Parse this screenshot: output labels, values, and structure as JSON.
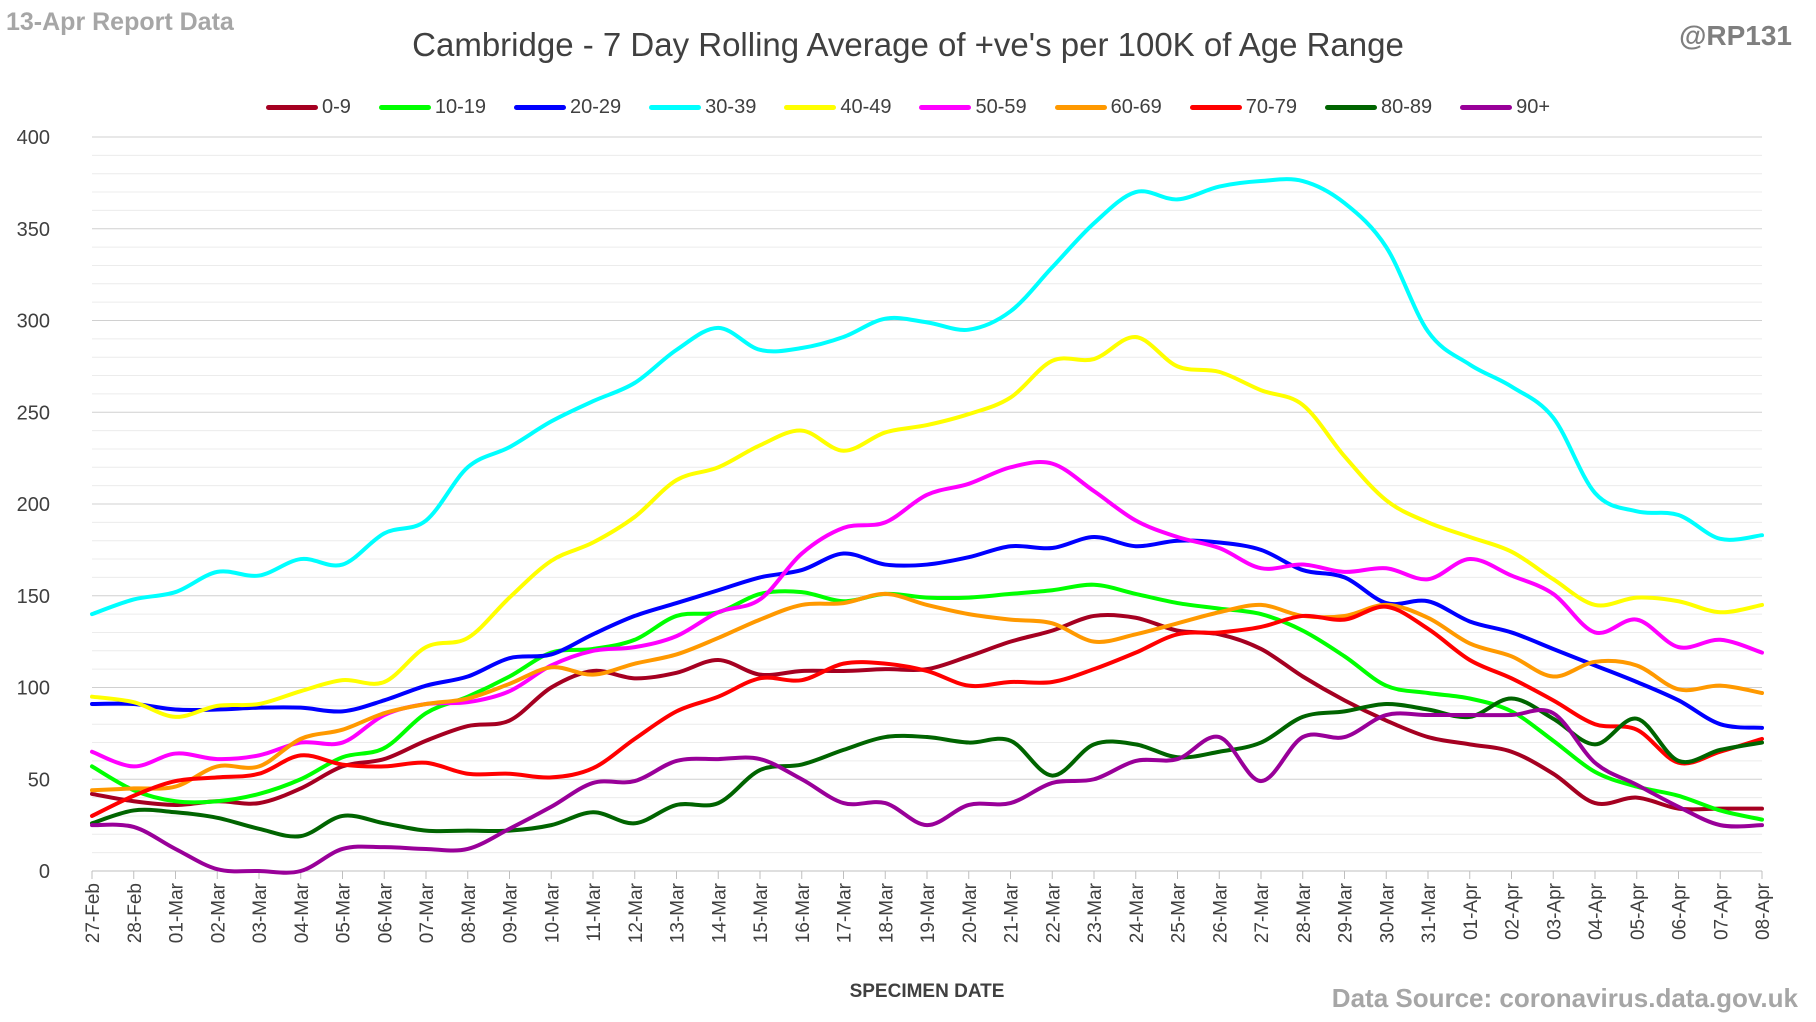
{
  "header": {
    "report_label": "13-Apr Report Data",
    "handle": "@RP131"
  },
  "footer": {
    "source": "Data Source: coronavirus.data.gov.uk"
  },
  "chart_data": {
    "type": "line",
    "title": "Cambridge - 7 Day Rolling Average of +ve's per 100K of Age Range",
    "xlabel": "SPECIMEN DATE",
    "ylabel": "",
    "ylim": [
      0,
      400
    ],
    "yticks": [
      0,
      50,
      100,
      150,
      200,
      250,
      300,
      350,
      400
    ],
    "grid": true,
    "legend_position": "top",
    "categories": [
      "27-Feb",
      "28-Feb",
      "01-Mar",
      "02-Mar",
      "03-Mar",
      "04-Mar",
      "05-Mar",
      "06-Mar",
      "07-Mar",
      "08-Mar",
      "09-Mar",
      "10-Mar",
      "11-Mar",
      "12-Mar",
      "13-Mar",
      "14-Mar",
      "15-Mar",
      "16-Mar",
      "17-Mar",
      "18-Mar",
      "19-Mar",
      "20-Mar",
      "21-Mar",
      "22-Mar",
      "23-Mar",
      "24-Mar",
      "25-Mar",
      "26-Mar",
      "27-Mar",
      "28-Mar",
      "29-Mar",
      "30-Mar",
      "31-Mar",
      "01-Apr",
      "02-Apr",
      "03-Apr",
      "04-Apr",
      "05-Apr",
      "06-Apr",
      "07-Apr",
      "08-Apr"
    ],
    "series": [
      {
        "name": "0-9",
        "color": "#a50021",
        "values": [
          42,
          38,
          36,
          38,
          37,
          45,
          57,
          61,
          71,
          79,
          82,
          100,
          109,
          105,
          108,
          115,
          107,
          109,
          109,
          110,
          110,
          117,
          125,
          131,
          139,
          138,
          131,
          129,
          121,
          106,
          93,
          82,
          73,
          69,
          65,
          53,
          37,
          40,
          34,
          34,
          34
        ]
      },
      {
        "name": "10-19",
        "color": "#00ff00",
        "values": [
          57,
          44,
          38,
          38,
          42,
          50,
          62,
          67,
          86,
          95,
          106,
          119,
          121,
          126,
          139,
          141,
          151,
          152,
          147,
          151,
          149,
          149,
          151,
          153,
          156,
          151,
          146,
          143,
          140,
          131,
          117,
          101,
          97,
          94,
          87,
          71,
          54,
          46,
          41,
          33,
          28
        ]
      },
      {
        "name": "20-29",
        "color": "#0000ff",
        "values": [
          91,
          91,
          88,
          88,
          89,
          89,
          87,
          93,
          101,
          106,
          116,
          118,
          129,
          139,
          146,
          153,
          160,
          164,
          173,
          167,
          167,
          171,
          177,
          176,
          182,
          177,
          180,
          179,
          175,
          164,
          160,
          146,
          147,
          136,
          130,
          121,
          112,
          103,
          93,
          80,
          78
        ]
      },
      {
        "name": "30-39",
        "color": "#00ffff",
        "values": [
          140,
          148,
          152,
          163,
          161,
          170,
          167,
          184,
          191,
          220,
          231,
          245,
          256,
          266,
          284,
          296,
          284,
          285,
          291,
          301,
          299,
          295,
          305,
          329,
          353,
          370,
          366,
          373,
          376,
          376,
          364,
          340,
          294,
          276,
          264,
          247,
          206,
          196,
          194,
          181,
          183
        ]
      },
      {
        "name": "40-49",
        "color": "#ffff00",
        "values": [
          95,
          92,
          84,
          90,
          91,
          98,
          104,
          103,
          122,
          127,
          149,
          169,
          179,
          193,
          213,
          220,
          232,
          240,
          229,
          239,
          243,
          249,
          258,
          278,
          279,
          291,
          275,
          272,
          262,
          254,
          226,
          202,
          190,
          182,
          174,
          159,
          145,
          149,
          147,
          141,
          145
        ]
      },
      {
        "name": "50-59",
        "color": "#ff00ff",
        "values": [
          65,
          57,
          64,
          61,
          63,
          70,
          70,
          85,
          91,
          92,
          98,
          112,
          120,
          122,
          128,
          141,
          148,
          173,
          187,
          190,
          205,
          211,
          220,
          222,
          207,
          191,
          182,
          176,
          165,
          167,
          163,
          165,
          159,
          170,
          161,
          151,
          130,
          137,
          122,
          126,
          119
        ]
      },
      {
        "name": "60-69",
        "color": "#ff9900",
        "values": [
          44,
          45,
          46,
          57,
          57,
          72,
          77,
          86,
          91,
          94,
          102,
          111,
          107,
          113,
          118,
          127,
          137,
          145,
          146,
          151,
          145,
          140,
          137,
          135,
          125,
          129,
          135,
          141,
          145,
          139,
          139,
          145,
          138,
          124,
          117,
          106,
          114,
          112,
          99,
          101,
          97
        ]
      },
      {
        "name": "70-79",
        "color": "#ff0000",
        "values": [
          30,
          41,
          49,
          51,
          53,
          63,
          58,
          57,
          59,
          53,
          53,
          51,
          56,
          72,
          87,
          95,
          105,
          104,
          113,
          113,
          109,
          101,
          103,
          103,
          110,
          119,
          129,
          130,
          133,
          139,
          137,
          144,
          132,
          115,
          105,
          93,
          80,
          77,
          59,
          65,
          72
        ]
      },
      {
        "name": "80-89",
        "color": "#006400",
        "values": [
          26,
          33,
          32,
          29,
          23,
          19,
          30,
          26,
          22,
          22,
          22,
          25,
          32,
          26,
          36,
          37,
          55,
          58,
          66,
          73,
          73,
          70,
          71,
          52,
          69,
          69,
          62,
          65,
          70,
          84,
          87,
          91,
          88,
          84,
          94,
          83,
          69,
          83,
          60,
          66,
          70
        ]
      },
      {
        "name": "90+",
        "color": "#990099",
        "values": [
          25,
          24,
          12,
          1,
          0,
          0,
          12,
          13,
          12,
          12,
          23,
          35,
          48,
          49,
          60,
          61,
          61,
          50,
          37,
          37,
          25,
          36,
          37,
          48,
          50,
          60,
          61,
          73,
          49,
          73,
          73,
          85,
          85,
          85,
          85,
          86,
          59,
          47,
          35,
          25,
          25
        ]
      }
    ]
  }
}
